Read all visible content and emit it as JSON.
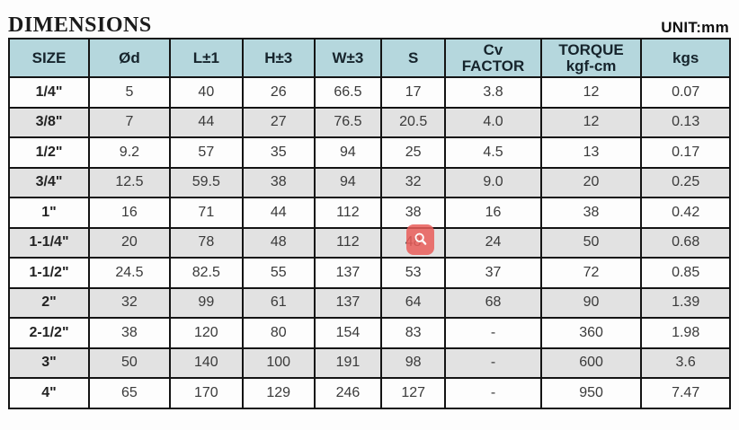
{
  "page": {
    "title": "DIMENSIONS",
    "unit_label": "UNIT:mm"
  },
  "colors": {
    "header_background": "#b5d7dd",
    "row_alt_background": "#e2e2e2",
    "border": "#141414",
    "overlay_badge": "#e95d59"
  },
  "overlay": {
    "icon": "magnifier-icon"
  },
  "table": {
    "columns": [
      [
        "SIZE"
      ],
      [
        "Ød"
      ],
      [
        "L±1"
      ],
      [
        "H±3"
      ],
      [
        "W±3"
      ],
      [
        "S"
      ],
      [
        "Cv",
        "FACTOR"
      ],
      [
        "TORQUE",
        "kgf-cm"
      ],
      [
        "kgs"
      ]
    ],
    "rows": [
      [
        "1/4\"",
        "5",
        "40",
        "26",
        "66.5",
        "17",
        "3.8",
        "12",
        "0.07"
      ],
      [
        "3/8\"",
        "7",
        "44",
        "27",
        "76.5",
        "20.5",
        "4.0",
        "12",
        "0.13"
      ],
      [
        "1/2\"",
        "9.2",
        "57",
        "35",
        "94",
        "25",
        "4.5",
        "13",
        "0.17"
      ],
      [
        "3/4\"",
        "12.5",
        "59.5",
        "38",
        "94",
        "32",
        "9.0",
        "20",
        "0.25"
      ],
      [
        "1\"",
        "16",
        "71",
        "44",
        "112",
        "38",
        "16",
        "38",
        "0.42"
      ],
      [
        "1-1/4\"",
        "20",
        "78",
        "48",
        "112",
        "48",
        "24",
        "50",
        "0.68"
      ],
      [
        "1-1/2\"",
        "24.5",
        "82.5",
        "55",
        "137",
        "53",
        "37",
        "72",
        "0.85"
      ],
      [
        "2\"",
        "32",
        "99",
        "61",
        "137",
        "64",
        "68",
        "90",
        "1.39"
      ],
      [
        "2-1/2\"",
        "38",
        "120",
        "80",
        "154",
        "83",
        "-",
        "360",
        "1.98"
      ],
      [
        "3\"",
        "50",
        "140",
        "100",
        "191",
        "98",
        "-",
        "600",
        "3.6"
      ],
      [
        "4\"",
        "65",
        "170",
        "129",
        "246",
        "127",
        "-",
        "950",
        "7.47"
      ]
    ]
  }
}
